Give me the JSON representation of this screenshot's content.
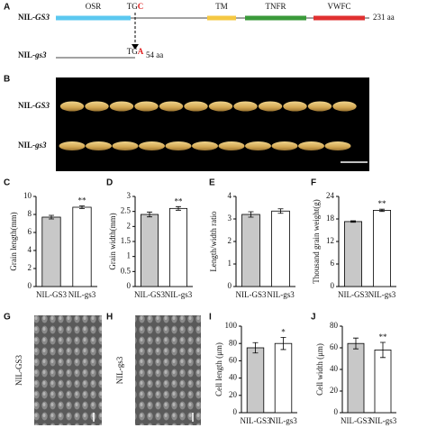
{
  "panel_labels": [
    "A",
    "B",
    "C",
    "D",
    "E",
    "F",
    "G",
    "H",
    "I",
    "J"
  ],
  "alleles": [
    {
      "prefix": "NIL-",
      "gene": "GS3"
    },
    {
      "prefix": "NIL-",
      "gene": "gs3"
    }
  ],
  "gene_diagram": {
    "domains": [
      {
        "name": "OSR",
        "color": "#5bc8f0"
      },
      {
        "name": "TM",
        "color": "#f5c842"
      },
      {
        "name": "TNFR",
        "color": "#3a9a3a"
      },
      {
        "name": "VWFC",
        "color": "#e03030"
      }
    ],
    "codons": [
      {
        "stem": "TG",
        "base": "C"
      },
      {
        "stem": "TG",
        "base": "A"
      }
    ],
    "lengths": [
      "231 aa",
      "54 aa"
    ]
  },
  "micrograph_labels": [
    "NIL-GS3",
    "NIL-gs3"
  ],
  "chart_data": [
    {
      "type": "bar",
      "ylabel": "Grain length(mm)",
      "categories": [
        "NIL-GS3",
        "NIL-gs3"
      ],
      "values": [
        7.7,
        8.8
      ],
      "errors": [
        0.2,
        0.15
      ],
      "colors": [
        "#c8c8c8",
        "#ffffff"
      ],
      "annotations": [
        null,
        "**"
      ],
      "ylim": [
        0,
        10
      ],
      "yticks": [
        0,
        2,
        4,
        6,
        8,
        10
      ]
    },
    {
      "type": "bar",
      "ylabel": "Grain width(mm)",
      "categories": [
        "NIL-GS3",
        "NIL-gs3"
      ],
      "values": [
        2.4,
        2.6
      ],
      "errors": [
        0.08,
        0.06
      ],
      "colors": [
        "#c8c8c8",
        "#ffffff"
      ],
      "annotations": [
        null,
        "**"
      ],
      "ylim": [
        0,
        3
      ],
      "yticks": [
        0,
        0.5,
        1,
        1.5,
        2,
        2.5,
        3
      ]
    },
    {
      "type": "bar",
      "ylabel": "Length/width ratio",
      "categories": [
        "NIL-GS3",
        "NIL-gs3"
      ],
      "values": [
        3.2,
        3.35
      ],
      "errors": [
        0.12,
        0.1
      ],
      "colors": [
        "#c8c8c8",
        "#ffffff"
      ],
      "ylim": [
        0,
        4
      ],
      "yticks": [
        0,
        1,
        2,
        3,
        4
      ]
    },
    {
      "type": "bar",
      "ylabel": "Thousand grain weight(g)",
      "categories": [
        "NIL-GS3",
        "NIL-gs3"
      ],
      "values": [
        17.3,
        20.3
      ],
      "errors": [
        0.2,
        0.3
      ],
      "colors": [
        "#c8c8c8",
        "#ffffff"
      ],
      "annotations": [
        null,
        "**"
      ],
      "ylim": [
        0,
        24
      ],
      "yticks": [
        0,
        6,
        12,
        18,
        24
      ]
    },
    {
      "type": "bar",
      "ylabel": "Cell length (μm)",
      "categories": [
        "NIL-GS3",
        "NIL-gs3"
      ],
      "values": [
        75,
        80
      ],
      "errors": [
        6,
        7
      ],
      "colors": [
        "#c8c8c8",
        "#ffffff"
      ],
      "annotations": [
        null,
        "*"
      ],
      "ylim": [
        0,
        100
      ],
      "yticks": [
        0,
        20,
        40,
        60,
        80,
        100
      ]
    },
    {
      "type": "bar",
      "ylabel": "Cell width (μm)",
      "categories": [
        "NIL-GS3",
        "NIL-gs3"
      ],
      "values": [
        64,
        58
      ],
      "errors": [
        5,
        7
      ],
      "colors": [
        "#c8c8c8",
        "#ffffff"
      ],
      "annotations": [
        null,
        "**"
      ],
      "ylim": [
        0,
        80
      ],
      "yticks": [
        0,
        20,
        40,
        60,
        80
      ]
    }
  ]
}
